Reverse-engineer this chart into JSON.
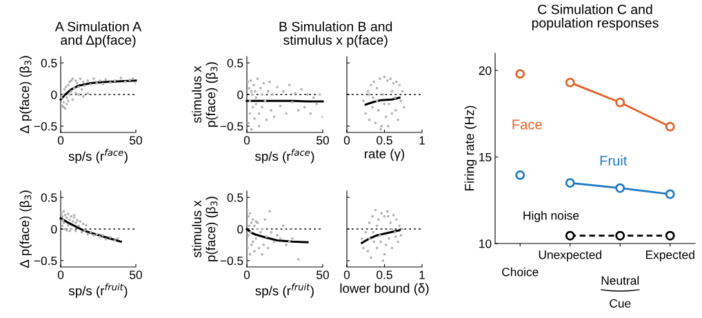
{
  "chart_data": [
    {
      "type": "scatter",
      "title": "A Simulation A\nand Δp(face)",
      "xlabel": "sp/s (r$^{face}$)",
      "ylabel": "Δ p(face) (β$_{3}$)",
      "xlim": [
        0,
        50
      ],
      "xticks": [
        0,
        50
      ],
      "ylim": [
        -0.6,
        0.6
      ],
      "yticks": [
        {
          "value": -0.5,
          "label": "−0.5"
        },
        0,
        0.5
      ],
      "ref_lines": [
        {
          "axis": "y",
          "value": 0,
          "color": "#000000",
          "line_style": "dotted"
        }
      ],
      "series": [
        {
          "type": "scatter",
          "color": "#b4b4b4",
          "x": [
            0.5,
            1,
            1.5,
            2,
            2.5,
            3,
            3.5,
            4,
            5,
            5,
            6,
            6,
            7,
            7,
            8,
            9,
            10,
            10,
            11,
            12,
            13,
            14,
            15,
            16,
            18,
            20,
            22,
            24,
            26,
            28,
            30,
            33,
            36,
            40,
            43,
            46,
            48,
            50,
            2,
            4,
            8,
            12,
            15,
            18
          ],
          "values": [
            -0.05,
            -0.18,
            0.0,
            -0.12,
            0.08,
            -0.22,
            0.12,
            -0.05,
            0.15,
            -0.1,
            0.2,
            0.0,
            0.22,
            0.05,
            0.25,
            0.1,
            0.22,
            0.02,
            0.18,
            0.12,
            0.25,
            0.08,
            0.2,
            0.14,
            0.22,
            0.16,
            0.25,
            0.18,
            0.22,
            0.17,
            0.24,
            0.19,
            0.22,
            0.26,
            0.2,
            0.23,
            0.25,
            0.19,
            -0.2,
            -0.15,
            -0.08,
            0.0,
            -0.03,
            0.02
          ]
        },
        {
          "type": "line",
          "color": "#000000",
          "x": [
            0,
            3,
            7,
            12,
            20,
            30,
            40,
            50
          ],
          "values": [
            -0.08,
            0.0,
            0.08,
            0.14,
            0.18,
            0.2,
            0.21,
            0.22
          ]
        }
      ]
    },
    {
      "type": "scatter",
      "xlabel": "sp/s (r$^{fruit}$)",
      "ylabel": "Δ p(face) (β$_{3}$)",
      "xlim": [
        0,
        50
      ],
      "xticks": [
        0,
        50
      ],
      "ylim": [
        -0.6,
        0.6
      ],
      "yticks": [
        {
          "value": -0.5,
          "label": "−0.5"
        },
        0,
        0.5
      ],
      "ref_lines": [
        {
          "axis": "y",
          "value": 0,
          "color": "#000000",
          "line_style": "dotted"
        }
      ],
      "series": [
        {
          "type": "scatter",
          "color": "#b4b4b4",
          "x": [
            0.5,
            1,
            1,
            2,
            2,
            3,
            3,
            4,
            4,
            5,
            5,
            6,
            7,
            7,
            8,
            9,
            10,
            10,
            11,
            12,
            13,
            14,
            15,
            16,
            17,
            18,
            20,
            22,
            24,
            26,
            28,
            30,
            33,
            36,
            38,
            1.5,
            6,
            9
          ],
          "values": [
            0.25,
            0.05,
            0.2,
            0.28,
            0.1,
            0.22,
            0.0,
            0.18,
            -0.02,
            0.24,
            0.06,
            0.15,
            0.2,
            0.0,
            0.12,
            0.18,
            0.1,
            -0.03,
            0.14,
            0.05,
            0.12,
            -0.05,
            0.08,
            -0.02,
            0.06,
            -0.08,
            -0.05,
            -0.1,
            -0.08,
            -0.12,
            -0.1,
            -0.16,
            -0.13,
            -0.18,
            -0.15,
            0.14,
            -0.03,
            0.22
          ]
        },
        {
          "type": "line",
          "color": "#000000",
          "x": [
            0,
            5,
            10,
            15,
            20,
            30,
            40
          ],
          "values": [
            0.17,
            0.1,
            0.04,
            -0.02,
            -0.06,
            -0.13,
            -0.2
          ]
        }
      ]
    },
    {
      "type": "scatter",
      "title": "B Simulation B and\nstimulus x p(face)",
      "xlabel": "sp/s (r$^{face}$)",
      "ylabel": "stimulus x\np(face) (β$_{3}$)",
      "xlim": [
        0,
        50
      ],
      "xticks": [
        0,
        50
      ],
      "ylim": [
        -0.6,
        0.6
      ],
      "yticks": [
        {
          "value": -0.5,
          "label": "−0.5"
        },
        0,
        0.5
      ],
      "ref_lines": [
        {
          "axis": "y",
          "value": 0,
          "color": "#000000",
          "line_style": "dotted"
        }
      ],
      "series": [
        {
          "type": "scatter",
          "color": "#b4b4b4",
          "x": [
            0.5,
            1,
            1.5,
            2,
            2.5,
            3,
            3.5,
            4,
            4.5,
            5,
            5.5,
            6,
            7,
            8,
            9,
            10,
            11,
            12,
            13,
            14,
            15,
            16,
            17,
            18,
            20,
            22,
            24,
            26,
            28,
            30,
            32,
            34,
            36,
            38,
            40,
            42,
            44,
            46,
            48,
            50,
            2,
            6,
            10,
            3,
            8
          ],
          "values": [
            0.2,
            -0.45,
            0.1,
            -0.3,
            0.22,
            -0.55,
            0.0,
            -0.2,
            0.15,
            -0.38,
            0.05,
            -0.15,
            0.25,
            -0.3,
            0.1,
            -0.2,
            0.18,
            -0.1,
            -0.4,
            0.05,
            0.2,
            -0.25,
            0.0,
            -0.35,
            0.12,
            -0.18,
            0.05,
            -0.3,
            0.15,
            -0.12,
            0.02,
            -0.25,
            0.08,
            -0.2,
            0.0,
            -0.3,
            -0.05,
            -0.15,
            0.0,
            -0.35,
            -0.1,
            -0.05,
            0.0,
            0.05,
            -0.5
          ]
        },
        {
          "type": "line",
          "color": "#000000",
          "x": [
            0,
            10,
            20,
            30,
            40,
            50
          ],
          "values": [
            -0.1,
            -0.1,
            -0.1,
            -0.1,
            -0.11,
            -0.11
          ]
        }
      ]
    },
    {
      "type": "scatter",
      "xlabel": "rate (γ)",
      "xlim": [
        0,
        1
      ],
      "xticks": [
        0,
        0.5,
        1
      ],
      "ylim": [
        -0.6,
        0.6
      ],
      "yticks": [
        {
          "value": -0.5,
          "label": null
        },
        {
          "value": 0,
          "label": null
        },
        {
          "value": 0.5,
          "label": null
        }
      ],
      "tick_labels": "x",
      "ref_lines": [
        {
          "axis": "y",
          "value": 0,
          "color": "#000000",
          "line_style": "dotted"
        }
      ],
      "series": [
        {
          "type": "scatter",
          "color": "#b4b4b4",
          "x": [
            0.22,
            0.25,
            0.28,
            0.3,
            0.32,
            0.34,
            0.36,
            0.38,
            0.4,
            0.42,
            0.44,
            0.46,
            0.48,
            0.5,
            0.52,
            0.54,
            0.56,
            0.58,
            0.6,
            0.62,
            0.64,
            0.66,
            0.68,
            0.7,
            0.72,
            0.74,
            0.76,
            0.3,
            0.4,
            0.5,
            0.6,
            0.45,
            0.55,
            0.35,
            0.65
          ],
          "values": [
            -0.1,
            -0.3,
            0.05,
            -0.4,
            0.15,
            -0.2,
            0.2,
            -0.45,
            0.1,
            -0.25,
            0.25,
            -0.5,
            0.0,
            0.28,
            -0.35,
            0.22,
            -0.15,
            0.25,
            -0.3,
            0.18,
            -0.05,
            0.2,
            -0.4,
            0.15,
            -0.1,
            0.05,
            -0.2,
            0.0,
            -0.1,
            -0.15,
            0.05,
            -0.55,
            -0.5,
            -0.05,
            -0.25
          ]
        },
        {
          "type": "line",
          "color": "#000000",
          "x": [
            0.25,
            0.35,
            0.45,
            0.6,
            0.7
          ],
          "values": [
            -0.16,
            -0.12,
            -0.09,
            -0.08,
            -0.05
          ]
        }
      ]
    },
    {
      "type": "scatter",
      "xlabel": "sp/s (r$^{fruit}$)",
      "ylabel": "stimulus x\np(face) (β$_{3}$)",
      "xlim": [
        0,
        50
      ],
      "xticks": [
        0,
        50
      ],
      "ylim": [
        -0.6,
        0.6
      ],
      "yticks": [
        {
          "value": -0.5,
          "label": "−0.5"
        },
        0,
        0.5
      ],
      "ref_lines": [
        {
          "axis": "y",
          "value": 0,
          "color": "#000000",
          "line_style": "dotted"
        }
      ],
      "series": [
        {
          "type": "scatter",
          "color": "#b4b4b4",
          "x": [
            0.3,
            0.5,
            1,
            1,
            1.5,
            2,
            2,
            3,
            3,
            4,
            4,
            5,
            5,
            6,
            6,
            7,
            8,
            9,
            10,
            11,
            12,
            13,
            14,
            15,
            16,
            18,
            20,
            22,
            24,
            26,
            28,
            30,
            34,
            2.5,
            7,
            10
          ],
          "values": [
            0.3,
            -0.3,
            0.2,
            -0.1,
            0.05,
            0.25,
            -0.4,
            0.1,
            -0.25,
            0.15,
            -0.2,
            0.05,
            -0.35,
            0.12,
            -0.15,
            0.1,
            -0.3,
            -0.05,
            0.0,
            -0.25,
            0.15,
            -0.12,
            -0.3,
            0.28,
            -0.05,
            -0.2,
            -0.1,
            -0.15,
            0.05,
            -0.25,
            -0.2,
            -0.15,
            -0.48,
            -0.05,
            0.0,
            -0.4
          ]
        },
        {
          "type": "line",
          "color": "#000000",
          "x": [
            0,
            3,
            6,
            12,
            20,
            30,
            40
          ],
          "values": [
            0.0,
            -0.06,
            -0.09,
            -0.13,
            -0.18,
            -0.2,
            -0.21
          ]
        }
      ]
    },
    {
      "type": "scatter",
      "xlabel": "lower bound (δ)",
      "xlim": [
        0,
        1
      ],
      "xticks": [
        0,
        0.5,
        1
      ],
      "ylim": [
        -0.6,
        0.6
      ],
      "yticks": [
        {
          "value": -0.5,
          "label": null
        },
        {
          "value": 0,
          "label": null
        },
        {
          "value": 0.5,
          "label": null
        }
      ],
      "tick_labels": "x",
      "ref_lines": [
        {
          "axis": "y",
          "value": 0,
          "color": "#000000",
          "line_style": "dotted"
        }
      ],
      "series": [
        {
          "type": "scatter",
          "color": "#b4b4b4",
          "x": [
            0.2,
            0.22,
            0.25,
            0.28,
            0.3,
            0.32,
            0.34,
            0.36,
            0.38,
            0.4,
            0.42,
            0.44,
            0.46,
            0.48,
            0.5,
            0.52,
            0.54,
            0.56,
            0.58,
            0.6,
            0.62,
            0.64,
            0.66,
            0.68,
            0.7,
            0.72,
            0.74,
            0.3,
            0.4,
            0.5,
            0.6,
            0.35,
            0.45,
            0.55,
            0.65
          ],
          "values": [
            -0.15,
            -0.3,
            -0.05,
            -0.35,
            0.1,
            -0.45,
            0.2,
            -0.2,
            0.3,
            -0.3,
            0.15,
            -0.1,
            0.25,
            -0.5,
            0.2,
            -0.25,
            0.28,
            -0.15,
            0.1,
            -0.3,
            0.22,
            -0.05,
            0.15,
            -0.2,
            0.05,
            -0.1,
            0.0,
            -0.15,
            0.05,
            -0.4,
            0.0,
            -0.05,
            -0.2,
            0.2,
            -0.12
          ]
        },
        {
          "type": "line",
          "color": "#000000",
          "x": [
            0.2,
            0.3,
            0.4,
            0.55,
            0.7
          ],
          "values": [
            -0.22,
            -0.15,
            -0.1,
            -0.06,
            -0.02
          ]
        }
      ]
    },
    {
      "type": "line",
      "title": "C Simulation C and\npopulation responses",
      "ylabel": "Firing rate (Hz)",
      "categories": [
        "Choice",
        "Unexpected",
        null,
        "Expected"
      ],
      "ylim": [
        10,
        21
      ],
      "yticks": [
        10,
        15,
        20
      ],
      "marker": "circle",
      "annotations": [
        "Neutral",
        "Cue"
      ],
      "series": [
        {
          "type": "scatter",
          "color": "#e0622a",
          "values": [
            19.8,
            null,
            null,
            null
          ]
        },
        {
          "name": "Face",
          "color": "#e0622a",
          "values": [
            null,
            19.3,
            18.15,
            16.75
          ]
        },
        {
          "type": "scatter",
          "color": "#1f7ac4",
          "values": [
            13.95,
            null,
            null,
            null
          ]
        },
        {
          "name": "Fruit",
          "color": "#1f7ac4",
          "values": [
            null,
            13.5,
            13.2,
            12.85
          ]
        },
        {
          "name": "High noise",
          "color": "#000000",
          "line_style": "dashed",
          "values": [
            null,
            10.45,
            10.45,
            10.45
          ]
        }
      ]
    }
  ]
}
